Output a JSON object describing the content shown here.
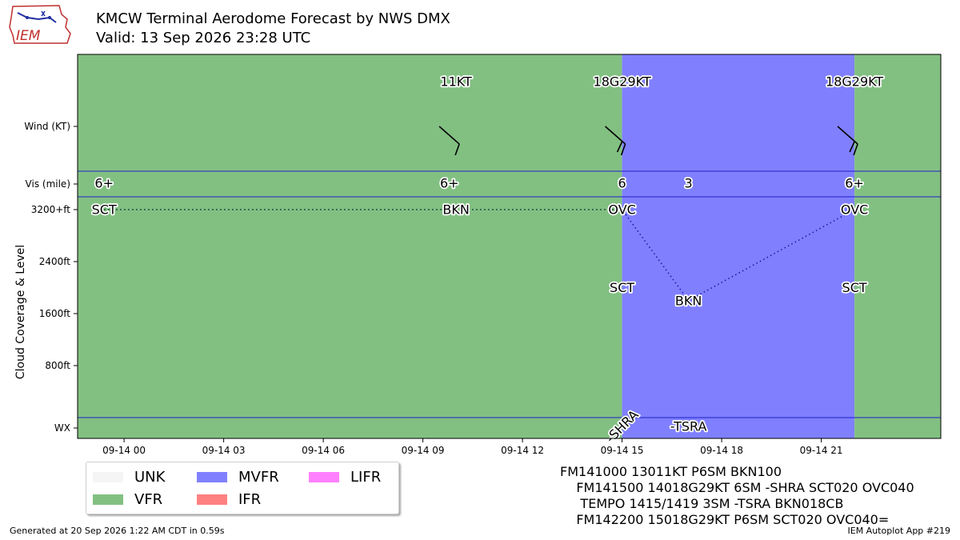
{
  "title": "KMCW Terminal Aerodome Forecast by NWS DMX",
  "subtitle": "Valid: 13 Sep 2026 23:28 UTC",
  "logo": {
    "text": "IEM"
  },
  "footer": {
    "left": "Generated at 20 Sep 2026 1:22 AM CDT in 0.59s",
    "right": "IEM Autoplot App #219"
  },
  "legend": [
    {
      "label": "UNK",
      "color": "#f5f5f5"
    },
    {
      "label": "VFR",
      "color": "#82c082"
    },
    {
      "label": "MVFR",
      "color": "#8080ff"
    },
    {
      "label": "IFR",
      "color": "#ff8080"
    },
    {
      "label": "LIFR",
      "color": "#ff80ff"
    }
  ],
  "taf_text": [
    "FM141000 13011KT P6SM BKN100",
    "    FM141500 14018G29KT 6SM -SHRA SCT020 OVC040",
    "     TEMPO 1415/1419 3SM -TSRA BKN018CB",
    "    FM142200 15018G29KT P6SM SCT020 OVC040="
  ],
  "chart_data": {
    "type": "timeline",
    "x_axis": {
      "unit": "hours since 09-14 00 UTC",
      "range": [
        -1.4,
        24.6
      ],
      "ticks": [
        {
          "v": 0,
          "label": "09-14 00"
        },
        {
          "v": 3,
          "label": "09-14 03"
        },
        {
          "v": 6,
          "label": "09-14 06"
        },
        {
          "v": 9,
          "label": "09-14 09"
        },
        {
          "v": 12,
          "label": "09-14 12"
        },
        {
          "v": 15,
          "label": "09-14 15"
        },
        {
          "v": 18,
          "label": "09-14 18"
        },
        {
          "v": 21,
          "label": "09-14 21"
        }
      ]
    },
    "y_axis": {
      "label": "Cloud Coverage & Level",
      "ticks": [
        {
          "label": "Wind (KT)",
          "row": "wind"
        },
        {
          "label": "Vis (mile)",
          "row": "vis"
        },
        {
          "label": "3200+ft",
          "row": "cloud",
          "value": 3200
        },
        {
          "label": "2400ft",
          "row": "cloud",
          "value": 2400
        },
        {
          "label": "1600ft",
          "row": "cloud",
          "value": 1600
        },
        {
          "label": "800ft",
          "row": "cloud",
          "value": 800
        },
        {
          "label": "WX",
          "row": "wx"
        }
      ]
    },
    "categories": [
      {
        "start": -1.4,
        "end": 15,
        "category": "VFR"
      },
      {
        "start": 15,
        "end": 22,
        "category": "MVFR"
      },
      {
        "start": 22,
        "end": 24.6,
        "category": "VFR"
      }
    ],
    "wind": [
      {
        "x": 10,
        "label": "11KT",
        "dir": 130,
        "speed": 11
      },
      {
        "x": 15,
        "label": "18G29KT",
        "dir": 140,
        "speed": 18
      },
      {
        "x": 22,
        "label": "18G29KT",
        "dir": 150,
        "speed": 18
      }
    ],
    "visibility": [
      {
        "x": -0.6,
        "label": "6+"
      },
      {
        "x": 9.8,
        "label": "6+"
      },
      {
        "x": 15,
        "label": "6"
      },
      {
        "x": 17,
        "label": "3"
      },
      {
        "x": 22,
        "label": "6+"
      }
    ],
    "clouds": [
      {
        "x": -0.6,
        "level": 3200,
        "label": "SCT"
      },
      {
        "x": 10,
        "level": 3200,
        "label": "BKN"
      },
      {
        "x": 15,
        "level": 3200,
        "label": "OVC"
      },
      {
        "x": 15,
        "level": 2000,
        "label": "SCT"
      },
      {
        "x": 17,
        "level": 1800,
        "label": "BKN"
      },
      {
        "x": 22,
        "level": 3200,
        "label": "OVC"
      },
      {
        "x": 22,
        "level": 2000,
        "label": "SCT"
      }
    ],
    "cloud_line": [
      {
        "x": -0.6,
        "level": 3200
      },
      {
        "x": 10,
        "level": 3200
      },
      {
        "x": 15,
        "level": 3200
      },
      {
        "x": 17,
        "level": 1800
      },
      {
        "x": 22,
        "level": 3200
      }
    ],
    "weather": [
      {
        "x": 15,
        "label": "-SHRA",
        "rotated": true
      },
      {
        "x": 17,
        "label": "-TSRA",
        "rotated": false
      }
    ]
  }
}
